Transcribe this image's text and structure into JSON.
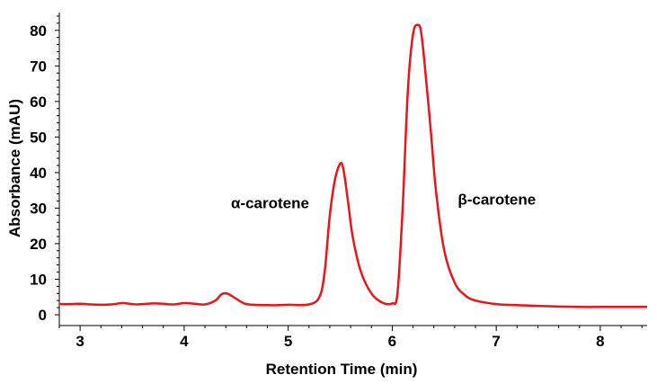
{
  "chart_data": {
    "type": "line",
    "xlabel": "Retention Time (min)",
    "ylabel": "Absorbance (mAU)",
    "xlim": [
      2.8,
      8.45
    ],
    "ylim": [
      0,
      85
    ],
    "x_ticks": [
      "3",
      "4",
      "5",
      "6",
      "7",
      "8"
    ],
    "y_ticks": [
      "0",
      "10",
      "20",
      "30",
      "40",
      "50",
      "60",
      "70",
      "80"
    ],
    "grid": false,
    "line_color": "#e8161b",
    "series": [
      {
        "x": [
          2.8,
          2.9,
          3.0,
          3.1,
          3.2,
          3.3,
          3.4,
          3.45,
          3.55,
          3.7,
          3.8,
          3.9,
          4.0,
          4.1,
          4.2,
          4.3,
          4.36,
          4.42,
          4.5,
          4.6,
          4.8,
          5.0,
          5.2,
          5.3,
          5.35,
          5.4,
          5.45,
          5.5,
          5.53,
          5.57,
          5.62,
          5.7,
          5.8,
          5.9,
          6.0,
          6.05,
          6.1,
          6.15,
          6.2,
          6.25,
          6.28,
          6.32,
          6.37,
          6.42,
          6.5,
          6.6,
          6.7,
          6.8,
          7.0,
          7.2,
          7.4,
          7.6,
          7.8,
          8.0,
          8.2,
          8.45
        ],
        "y": [
          3.0,
          3.0,
          3.1,
          2.9,
          2.8,
          2.9,
          3.3,
          3.2,
          2.9,
          3.2,
          3.1,
          2.9,
          3.3,
          3.1,
          2.9,
          4.0,
          5.8,
          5.9,
          4.5,
          3.0,
          2.7,
          2.8,
          2.9,
          5.0,
          12.0,
          28.0,
          38.0,
          42.5,
          41.0,
          33.0,
          22.0,
          12.0,
          6.0,
          3.5,
          3.2,
          6.0,
          30.0,
          63.0,
          79.0,
          81.5,
          79.0,
          68.0,
          52.0,
          35.0,
          18.0,
          9.0,
          5.5,
          4.0,
          3.0,
          2.7,
          2.5,
          2.3,
          2.2,
          2.2,
          2.2,
          2.2
        ]
      }
    ],
    "annotations": [
      {
        "text": "α-carotene",
        "x": 4.45,
        "y": 30
      },
      {
        "text": "β-carotene",
        "x": 6.63,
        "y": 31
      }
    ]
  }
}
